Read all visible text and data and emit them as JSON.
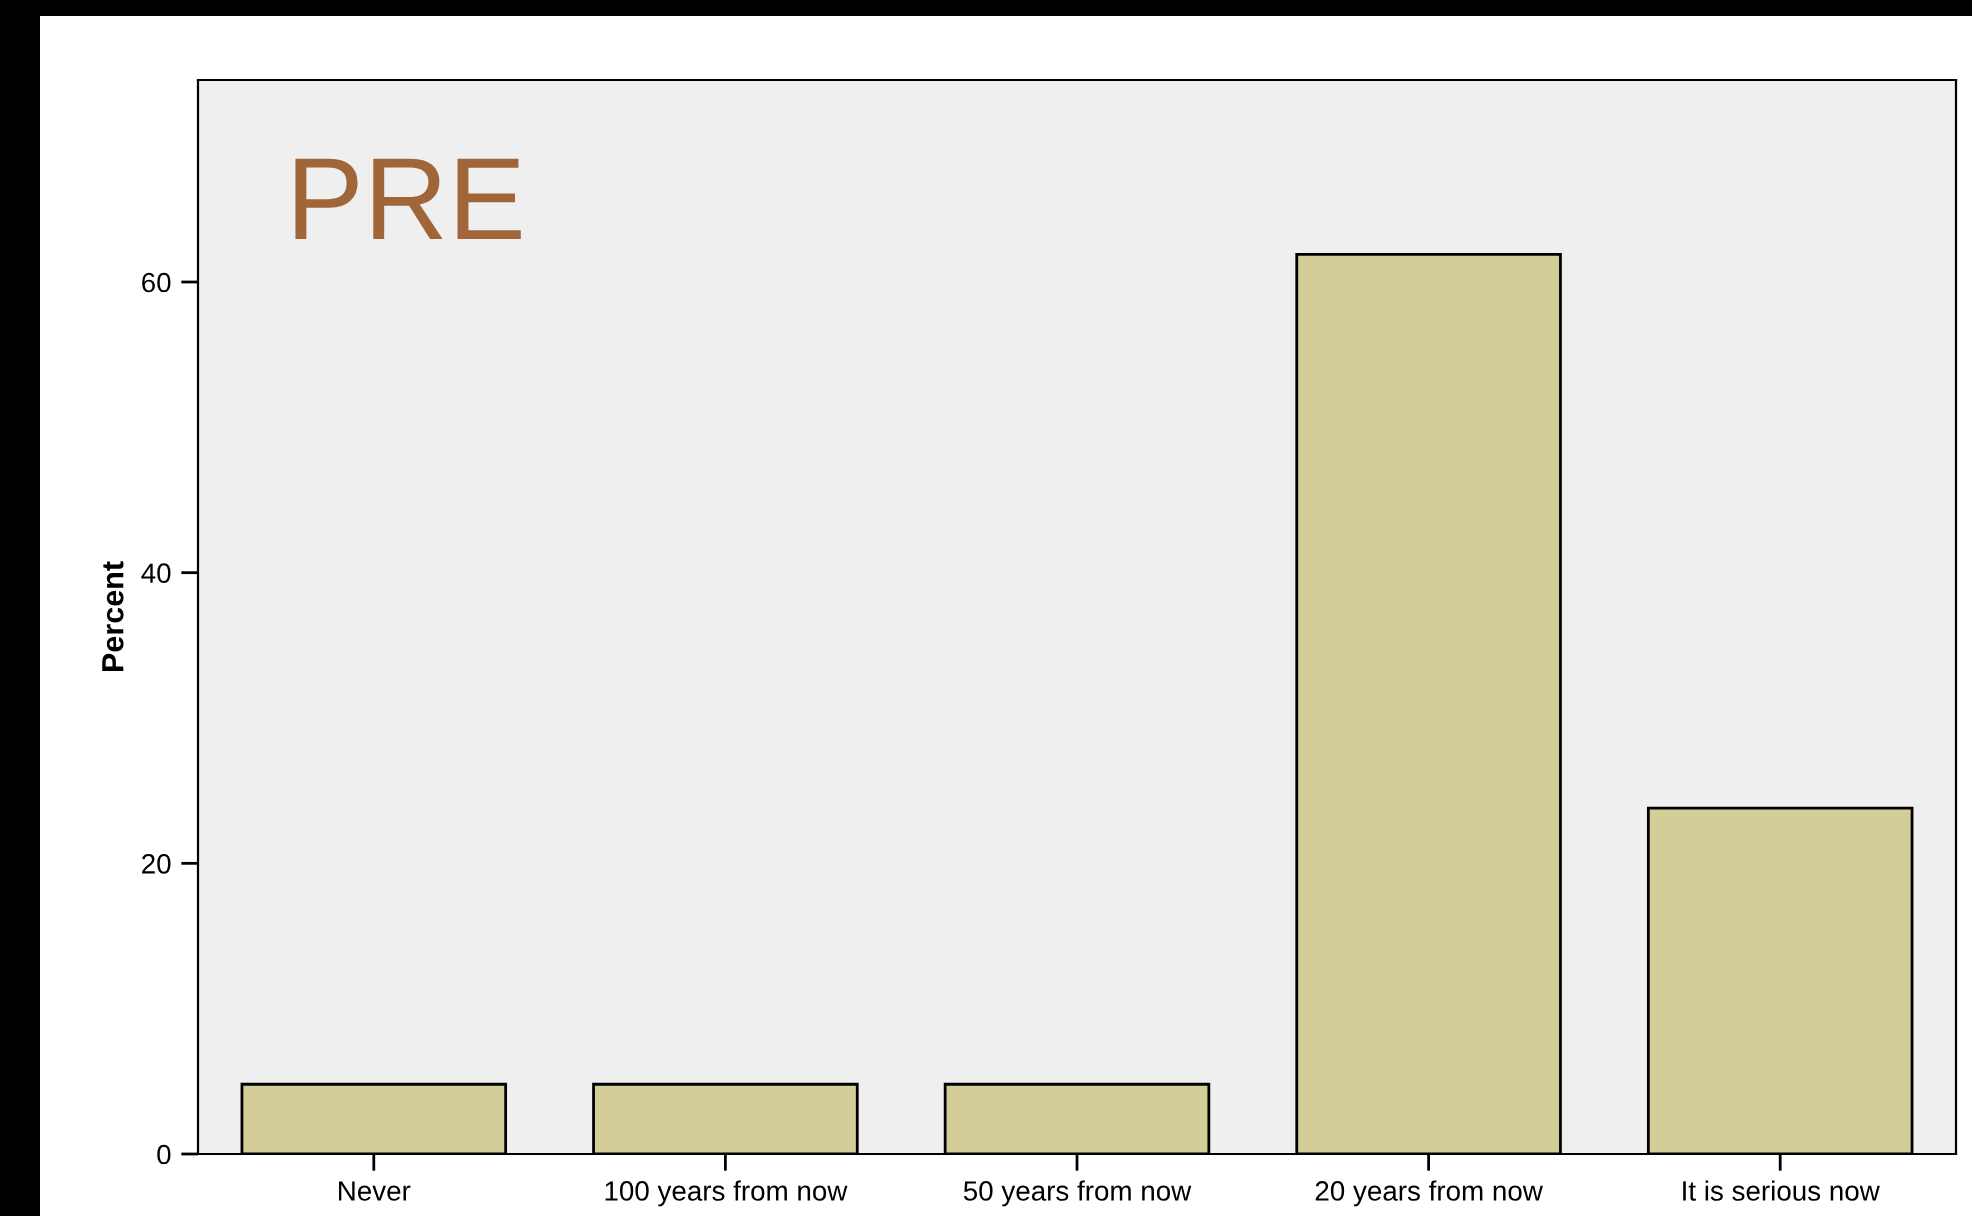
{
  "chart_data": {
    "type": "bar",
    "ylabel": "Percent",
    "categories": [
      "Never",
      "100 years from now",
      "50 years from now",
      "20 years from now",
      "It is serious now"
    ],
    "values": [
      4.8,
      4.8,
      4.8,
      61.9,
      23.8
    ],
    "color": "#d3cd98",
    "ylim": [
      0,
      73.9
    ],
    "yticks": [
      0,
      20,
      40,
      60
    ],
    "annotations": [
      "PRE"
    ],
    "grid": false,
    "legend": false
  }
}
